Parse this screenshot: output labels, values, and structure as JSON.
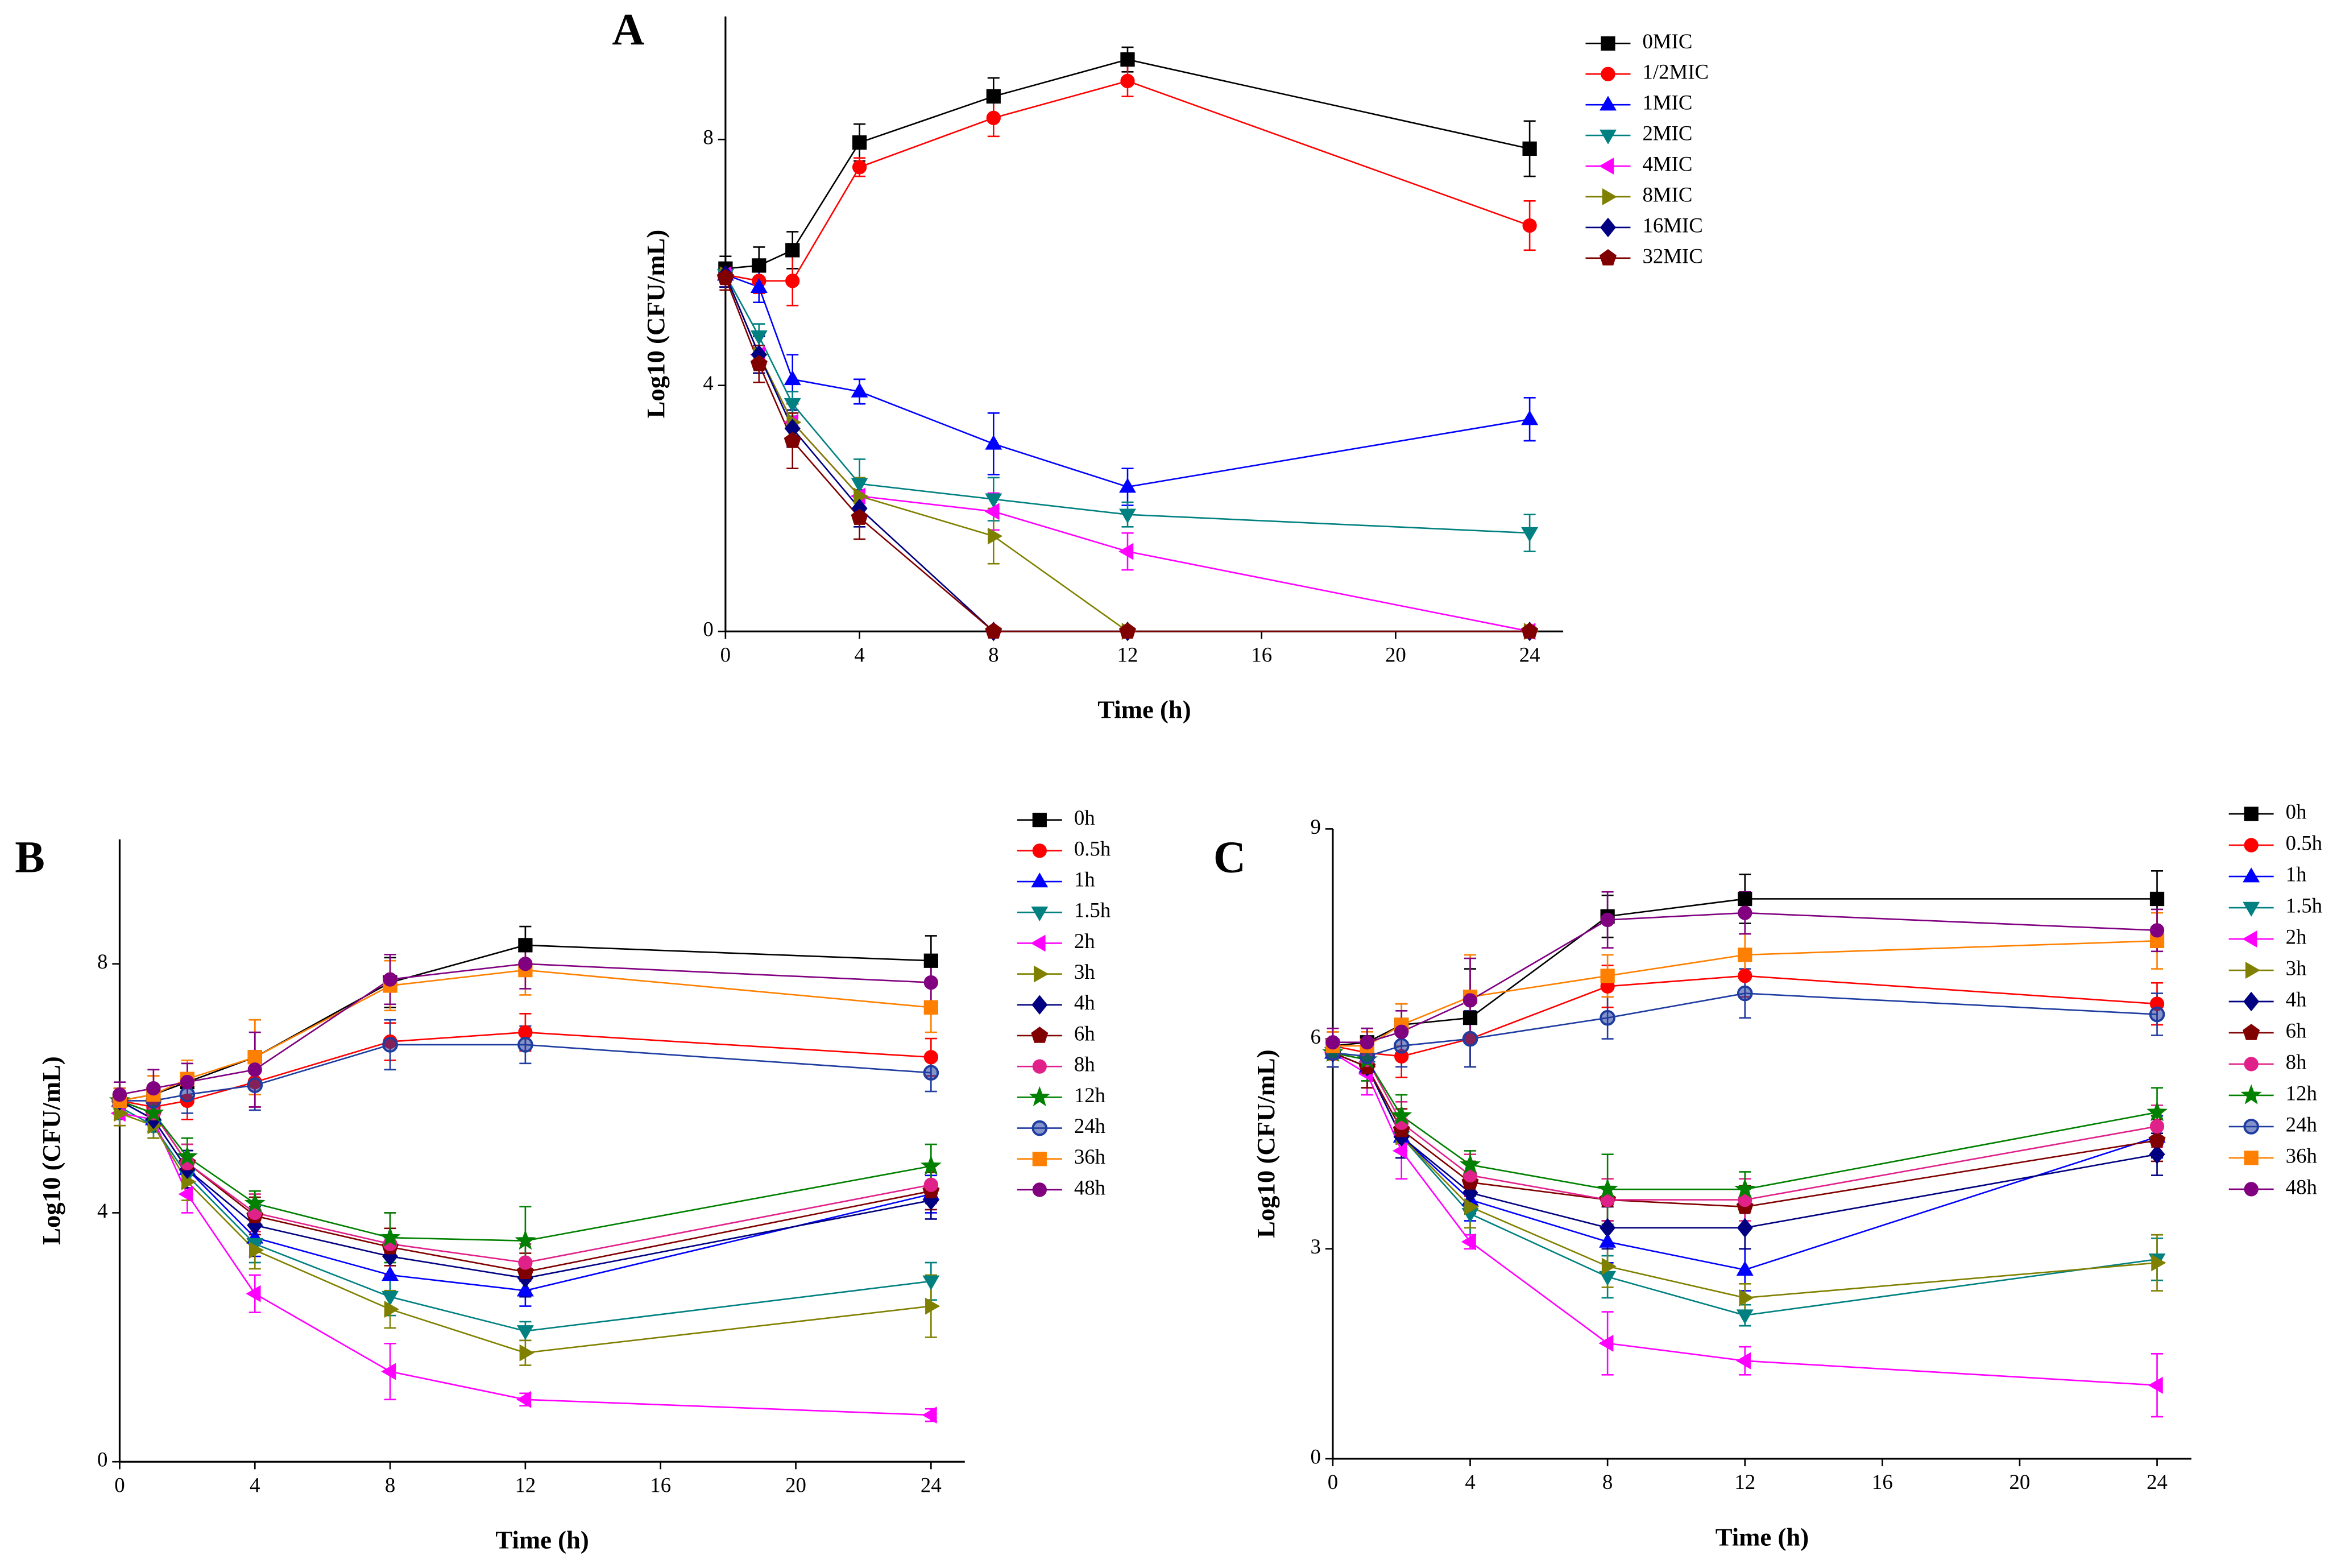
{
  "chart_data": [
    {
      "type": "line",
      "panel_label": "A",
      "x_label": "Time (h)",
      "y_label": "Log10 (CFU/mL)",
      "x": [
        0,
        1,
        2,
        4,
        8,
        12,
        24
      ],
      "xlim": [
        0,
        25
      ],
      "xticks": [
        0,
        4,
        8,
        12,
        16,
        20,
        24
      ],
      "ylim": [
        0,
        10
      ],
      "yticks": [
        0,
        4,
        8
      ],
      "legend": "right",
      "series": [
        {
          "name": "0MIC",
          "color": "#000000",
          "marker": "square",
          "values": [
            5.9,
            5.95,
            6.2,
            7.95,
            8.7,
            9.3,
            7.85
          ],
          "errors": [
            0.2,
            0.3,
            0.3,
            0.3,
            0.3,
            0.2,
            0.45
          ]
        },
        {
          "name": "1/2MIC",
          "color": "#ff0000",
          "marker": "circle",
          "values": [
            5.8,
            5.7,
            5.7,
            7.55,
            8.35,
            8.95,
            6.6
          ],
          "errors": [
            0.2,
            0.2,
            0.4,
            0.15,
            0.3,
            0.25,
            0.4
          ]
        },
        {
          "name": "1MIC",
          "color": "#0000ff",
          "marker": "triangle-up",
          "values": [
            5.8,
            5.6,
            4.1,
            3.9,
            3.05,
            2.35,
            3.45
          ],
          "errors": [
            0.2,
            0.25,
            0.4,
            0.2,
            0.5,
            0.3,
            0.35
          ]
        },
        {
          "name": "2MIC",
          "color": "#008080",
          "marker": "triangle-down",
          "values": [
            5.8,
            4.8,
            3.7,
            2.4,
            2.15,
            1.9,
            1.6
          ],
          "errors": [
            0.2,
            0.2,
            0.2,
            0.4,
            0.35,
            0.2,
            0.3
          ]
        },
        {
          "name": "4MIC",
          "color": "#ff00ff",
          "marker": "triangle-left",
          "values": [
            5.8,
            4.5,
            3.4,
            2.2,
            1.95,
            1.3,
            0
          ],
          "errors": [
            0.2,
            0.3,
            0.3,
            0.3,
            0.3,
            0.3,
            0
          ]
        },
        {
          "name": "8MIC",
          "color": "#808000",
          "marker": "triangle-right",
          "values": [
            5.8,
            4.5,
            3.4,
            2.2,
            1.55,
            0,
            0
          ],
          "errors": [
            0.2,
            0.3,
            0.3,
            0.3,
            0.45,
            0,
            0
          ]
        },
        {
          "name": "16MIC",
          "color": "#000080",
          "marker": "diamond",
          "values": [
            5.8,
            4.5,
            3.3,
            2.0,
            0,
            0,
            0
          ],
          "errors": [
            0.2,
            0.3,
            0.3,
            0.3,
            0,
            0,
            0
          ]
        },
        {
          "name": "32MIC",
          "color": "#800000",
          "marker": "pentagon",
          "values": [
            5.75,
            4.35,
            3.1,
            1.85,
            0,
            0,
            0
          ],
          "errors": [
            0.2,
            0.3,
            0.45,
            0.35,
            0,
            0,
            0
          ]
        }
      ]
    },
    {
      "type": "line",
      "panel_label": "B",
      "x_label": "Time (h)",
      "y_label": "Log10 (CFU/mL)",
      "x": [
        0,
        1,
        2,
        4,
        8,
        12,
        24
      ],
      "xlim": [
        0,
        25
      ],
      "xticks": [
        0,
        4,
        8,
        12,
        16,
        20,
        24
      ],
      "ylim": [
        0,
        10
      ],
      "yticks": [
        0,
        4,
        8
      ],
      "legend": "right",
      "series": [
        {
          "name": "0h",
          "color": "#000000",
          "marker": "square",
          "values": [
            5.8,
            5.9,
            6.1,
            6.5,
            7.7,
            8.3,
            8.05
          ],
          "errors": [
            0.2,
            0.3,
            0.3,
            0.6,
            0.4,
            0.3,
            0.4
          ]
        },
        {
          "name": "0.5h",
          "color": "#ff0000",
          "marker": "circle",
          "values": [
            5.8,
            5.7,
            5.8,
            6.1,
            6.75,
            6.9,
            6.5
          ],
          "errors": [
            0.2,
            0.3,
            0.3,
            0.4,
            0.3,
            0.3,
            0.3
          ]
        },
        {
          "name": "1h",
          "color": "#0000ff",
          "marker": "triangle-up",
          "values": [
            5.8,
            5.5,
            4.7,
            3.6,
            3.0,
            2.75,
            4.3
          ],
          "errors": [
            0.2,
            0.2,
            0.3,
            0.3,
            0.3,
            0.25,
            0.3
          ]
        },
        {
          "name": "1.5h",
          "color": "#008080",
          "marker": "triangle-down",
          "values": [
            5.7,
            5.4,
            4.6,
            3.5,
            2.65,
            2.1,
            2.9
          ],
          "errors": [
            0.2,
            0.2,
            0.3,
            0.3,
            0.3,
            0.15,
            0.3
          ]
        },
        {
          "name": "2h",
          "color": "#ff00ff",
          "marker": "triangle-left",
          "values": [
            5.6,
            5.5,
            4.3,
            2.7,
            1.45,
            1.0,
            0.75
          ],
          "errors": [
            0.2,
            0.2,
            0.3,
            0.3,
            0.45,
            0.1,
            0.1
          ]
        },
        {
          "name": "3h",
          "color": "#808000",
          "marker": "triangle-right",
          "values": [
            5.6,
            5.4,
            4.5,
            3.4,
            2.45,
            1.75,
            2.5
          ],
          "errors": [
            0.2,
            0.2,
            0.3,
            0.3,
            0.3,
            0.2,
            0.5
          ]
        },
        {
          "name": "4h",
          "color": "#000080",
          "marker": "diamond",
          "values": [
            5.8,
            5.5,
            4.7,
            3.8,
            3.3,
            2.95,
            4.2
          ],
          "errors": [
            0.2,
            0.2,
            0.3,
            0.3,
            0.3,
            0.3,
            0.3
          ]
        },
        {
          "name": "6h",
          "color": "#800000",
          "marker": "pentagon",
          "values": [
            5.8,
            5.6,
            4.8,
            3.95,
            3.45,
            3.05,
            4.35
          ],
          "errors": [
            0.2,
            0.2,
            0.3,
            0.3,
            0.3,
            0.3,
            0.3
          ]
        },
        {
          "name": "8h",
          "color": "#e0218a",
          "marker": "circle",
          "values": [
            5.8,
            5.6,
            4.8,
            4.0,
            3.5,
            3.2,
            4.45
          ],
          "errors": [
            0.2,
            0.2,
            0.3,
            0.3,
            0.5,
            0.3,
            0.3
          ]
        },
        {
          "name": "12h",
          "color": "#008000",
          "marker": "star",
          "values": [
            5.8,
            5.6,
            4.9,
            4.15,
            3.6,
            3.55,
            4.75
          ],
          "errors": [
            0.2,
            0.2,
            0.3,
            0.2,
            0.4,
            0.55,
            0.35
          ]
        },
        {
          "name": "24h",
          "color": "#1f3ca0",
          "marker": "half-circle",
          "values": [
            5.8,
            5.8,
            5.9,
            6.05,
            6.7,
            6.7,
            6.25
          ],
          "errors": [
            0.2,
            0.2,
            0.3,
            0.4,
            0.4,
            0.3,
            0.3
          ]
        },
        {
          "name": "36h",
          "color": "#ff8000",
          "marker": "square",
          "values": [
            5.8,
            5.9,
            6.15,
            6.5,
            7.65,
            7.9,
            7.3
          ],
          "errors": [
            0.2,
            0.3,
            0.3,
            0.6,
            0.4,
            0.4,
            0.4
          ]
        },
        {
          "name": "48h",
          "color": "#800080",
          "marker": "circle",
          "values": [
            5.9,
            6.0,
            6.1,
            6.3,
            7.75,
            8.0,
            7.7
          ],
          "errors": [
            0.2,
            0.3,
            0.3,
            0.6,
            0.4,
            0.4,
            0.4
          ]
        }
      ]
    },
    {
      "type": "line",
      "panel_label": "C",
      "x_label": "Time (h)",
      "y_label": "Log10 (CFU/mL)",
      "x": [
        0,
        1,
        2,
        4,
        8,
        12,
        24
      ],
      "xlim": [
        0,
        25
      ],
      "xticks": [
        0,
        4,
        8,
        12,
        16,
        20,
        24
      ],
      "ylim": [
        0,
        9
      ],
      "yticks": [
        0,
        3,
        6,
        9
      ],
      "legend": "right",
      "series": [
        {
          "name": "0h",
          "color": "#000000",
          "marker": "square",
          "values": [
            5.9,
            5.95,
            6.2,
            6.3,
            7.75,
            8.0,
            8.0
          ],
          "errors": [
            0.2,
            0.2,
            0.3,
            0.7,
            0.3,
            0.35,
            0.4
          ]
        },
        {
          "name": "0.5h",
          "color": "#ff0000",
          "marker": "circle",
          "values": [
            5.9,
            5.8,
            5.75,
            6.0,
            6.75,
            6.9,
            6.5
          ],
          "errors": [
            0.2,
            0.2,
            0.3,
            0.4,
            0.3,
            0.3,
            0.3
          ]
        },
        {
          "name": "1h",
          "color": "#0000ff",
          "marker": "triangle-up",
          "values": [
            5.8,
            5.6,
            4.6,
            3.7,
            3.1,
            2.7,
            4.6
          ],
          "errors": [
            0.2,
            0.3,
            0.3,
            0.3,
            0.3,
            0.3,
            0.3
          ]
        },
        {
          "name": "1.5h",
          "color": "#008080",
          "marker": "triangle-down",
          "values": [
            5.8,
            5.6,
            4.6,
            3.5,
            2.6,
            2.05,
            2.85
          ],
          "errors": [
            0.2,
            0.3,
            0.3,
            0.3,
            0.3,
            0.15,
            0.3
          ]
        },
        {
          "name": "2h",
          "color": "#ff00ff",
          "marker": "triangle-left",
          "values": [
            5.8,
            5.5,
            4.4,
            3.1,
            1.65,
            1.4,
            1.05
          ],
          "errors": [
            0.2,
            0.3,
            0.4,
            0.1,
            0.45,
            0.2,
            0.45
          ]
        },
        {
          "name": "3h",
          "color": "#808000",
          "marker": "triangle-right",
          "values": [
            5.8,
            5.6,
            4.6,
            3.6,
            2.75,
            2.3,
            2.8
          ],
          "errors": [
            0.2,
            0.3,
            0.3,
            0.3,
            0.3,
            0.2,
            0.4
          ]
        },
        {
          "name": "4h",
          "color": "#000080",
          "marker": "diamond",
          "values": [
            5.8,
            5.6,
            4.6,
            3.8,
            3.3,
            3.3,
            4.35
          ],
          "errors": [
            0.2,
            0.3,
            0.3,
            0.3,
            0.3,
            0.3,
            0.3
          ]
        },
        {
          "name": "6h",
          "color": "#800000",
          "marker": "pentagon",
          "values": [
            5.8,
            5.6,
            4.7,
            3.95,
            3.7,
            3.6,
            4.55
          ],
          "errors": [
            0.2,
            0.3,
            0.3,
            0.3,
            0.3,
            0.3,
            0.3
          ]
        },
        {
          "name": "8h",
          "color": "#e0218a",
          "marker": "circle",
          "values": [
            5.8,
            5.7,
            4.8,
            4.05,
            3.7,
            3.7,
            4.75
          ],
          "errors": [
            0.2,
            0.3,
            0.3,
            0.3,
            0.3,
            0.3,
            0.3
          ]
        },
        {
          "name": "12h",
          "color": "#008000",
          "marker": "star",
          "values": [
            5.8,
            5.7,
            4.9,
            4.2,
            3.85,
            3.85,
            4.95
          ],
          "errors": [
            0.2,
            0.3,
            0.3,
            0.2,
            0.5,
            0.25,
            0.35
          ]
        },
        {
          "name": "24h",
          "color": "#1f3ca0",
          "marker": "half-circle",
          "values": [
            5.8,
            5.75,
            5.9,
            6.0,
            6.3,
            6.65,
            6.35
          ],
          "errors": [
            0.2,
            0.2,
            0.3,
            0.4,
            0.3,
            0.35,
            0.3
          ]
        },
        {
          "name": "36h",
          "color": "#ff8000",
          "marker": "square",
          "values": [
            5.9,
            5.9,
            6.2,
            6.6,
            6.9,
            7.2,
            7.4
          ],
          "errors": [
            0.2,
            0.2,
            0.3,
            0.6,
            0.3,
            0.3,
            0.4
          ]
        },
        {
          "name": "48h",
          "color": "#800080",
          "marker": "circle",
          "values": [
            5.95,
            5.95,
            6.1,
            6.55,
            7.7,
            7.8,
            7.55
          ],
          "errors": [
            0.2,
            0.2,
            0.3,
            0.6,
            0.4,
            0.3,
            0.3
          ]
        }
      ]
    }
  ]
}
